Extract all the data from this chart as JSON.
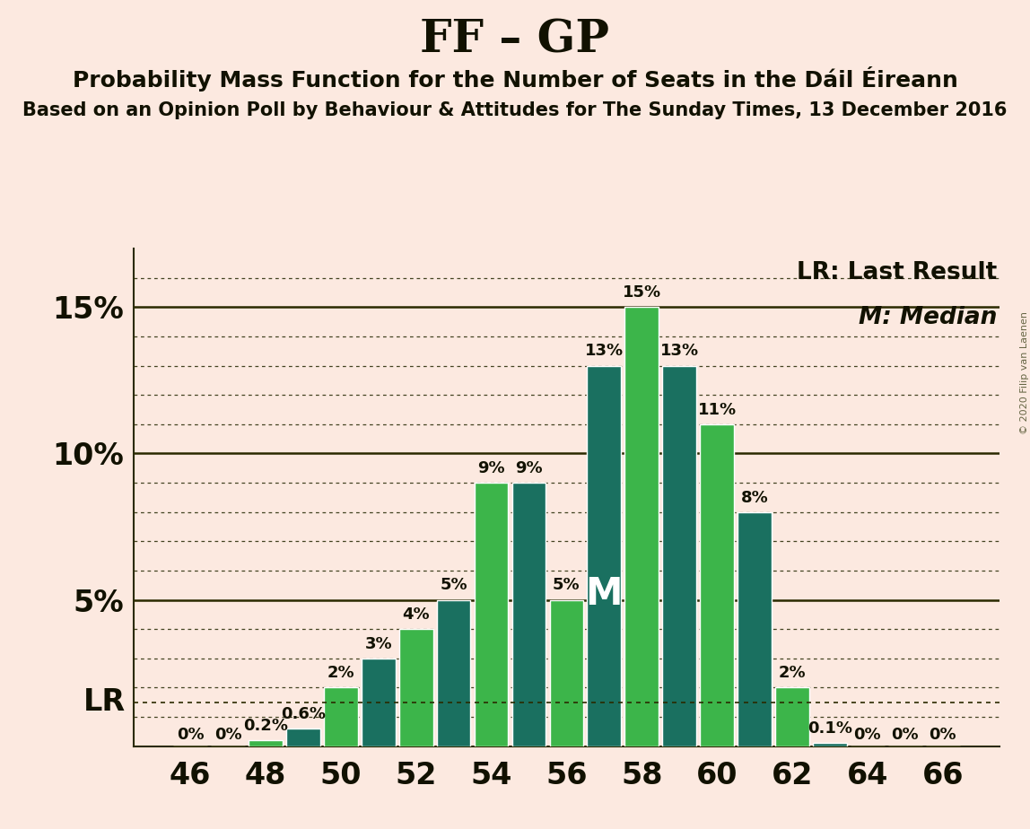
{
  "title": "FF – GP",
  "subtitle": "Probability Mass Function for the Number of Seats in the Dáil Éireann",
  "subtitle2": "Based on an Opinion Poll by Behaviour & Attitudes for The Sunday Times, 13 December 2016",
  "copyright": "© 2020 Filip van Laenen",
  "background_color": "#fce9e0",
  "seats": [
    46,
    47,
    48,
    49,
    50,
    51,
    52,
    53,
    54,
    55,
    56,
    57,
    58,
    59,
    60,
    61,
    62,
    63,
    64,
    65,
    66
  ],
  "values": [
    0.0,
    0.0,
    0.2,
    0.6,
    2.0,
    3.0,
    4.0,
    5.0,
    9.0,
    9.0,
    5.0,
    13.0,
    15.0,
    13.0,
    11.0,
    8.0,
    2.0,
    0.1,
    0.0,
    0.0,
    0.0
  ],
  "bar_labels": [
    "0%",
    "0%",
    "0.2%",
    "0.6%",
    "2%",
    "3%",
    "4%",
    "5%",
    "9%",
    "9%",
    "5%",
    "13%",
    "15%",
    "13%",
    "11%",
    "8%",
    "2%",
    "0.1%",
    "0%",
    "0%",
    "0%"
  ],
  "color_light": "#3cb54a",
  "color_dark": "#1a7060",
  "lr_value": 1.5,
  "median_seat": 57,
  "x_ticks": [
    46,
    48,
    50,
    52,
    54,
    56,
    58,
    60,
    62,
    64,
    66
  ],
  "ylim": [
    0,
    17
  ],
  "title_fontsize": 36,
  "subtitle_fontsize": 18,
  "subtitle2_fontsize": 15,
  "bar_label_fontsize": 13,
  "axis_tick_fontsize": 24,
  "legend_fontsize": 19,
  "lr_label": "LR",
  "median_label": "M",
  "lr_legend": "LR: Last Result",
  "median_legend": "M: Median"
}
